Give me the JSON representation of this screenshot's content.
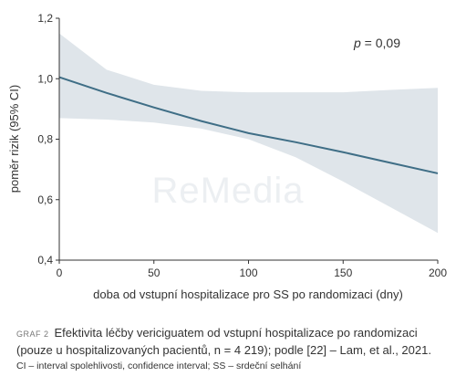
{
  "chart_data": {
    "type": "line",
    "x": [
      0,
      25,
      50,
      75,
      100,
      125,
      150,
      175,
      200
    ],
    "series": [
      {
        "values": [
          1.005,
          0.953,
          0.905,
          0.86,
          0.82,
          0.79,
          0.757,
          0.722,
          0.687
        ]
      }
    ],
    "ci_lower": [
      0.87,
      0.865,
      0.855,
      0.835,
      0.8,
      0.74,
      0.66,
      0.575,
      0.49
    ],
    "ci_upper": [
      1.15,
      1.03,
      0.98,
      0.96,
      0.955,
      0.955,
      0.955,
      0.963,
      0.97
    ],
    "xlabel": "doba od vstupní hospitalizace pro SS po randomizaci (dny)",
    "ylabel": "poměr rizik (95% CI)",
    "xlim": [
      0,
      200
    ],
    "ylim": [
      0.4,
      1.2
    ],
    "x_ticks": [
      0,
      50,
      100,
      150,
      200
    ],
    "x_tick_labels": [
      "0",
      "50",
      "100",
      "150",
      "200"
    ],
    "y_ticks": [
      0.4,
      0.6,
      0.8,
      1.0,
      1.2
    ],
    "y_tick_labels": [
      "0,4",
      "0,6",
      "0,8",
      "1,0",
      "1,2"
    ],
    "annotation_p_label": "p",
    "annotation_p_value": " = 0,09",
    "grid": false,
    "colors": {
      "line": "#3f6e86",
      "band": "#dfe5ea"
    }
  },
  "watermark": "ReMedia",
  "caption": {
    "tag": "GRAF 2",
    "text": "Efektivita léčby vericiguatem od vstupní hospitalizace po randomizaci (pouze u hospitalizovaných pacientů, n = 4 219); podle [22] – Lam, et al., 2021.",
    "note": "CI – interval spolehlivosti, confidence interval; SS – srdeční selhání"
  }
}
